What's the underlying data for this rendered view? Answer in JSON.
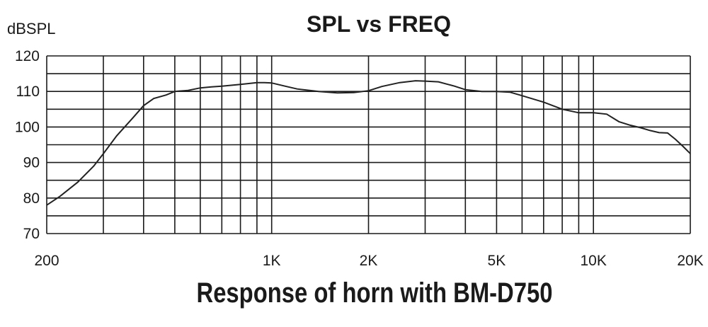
{
  "chart_data": {
    "type": "line",
    "title": "SPL vs FREQ",
    "ylabel": "dBSPL",
    "xlabel": "",
    "caption": "Response of horn with BM-D750",
    "x_scale": "log",
    "xlim": [
      200,
      20000
    ],
    "ylim": [
      70,
      120
    ],
    "grid": true,
    "x_tick_labels": [
      {
        "value": 200,
        "label": "200"
      },
      {
        "value": 1000,
        "label": "1K"
      },
      {
        "value": 2000,
        "label": "2K"
      },
      {
        "value": 5000,
        "label": "5K"
      },
      {
        "value": 10000,
        "label": "10K"
      },
      {
        "value": 20000,
        "label": "20K"
      }
    ],
    "y_tick_labels": [
      {
        "value": 70,
        "label": "70"
      },
      {
        "value": 80,
        "label": "80"
      },
      {
        "value": 90,
        "label": "90"
      },
      {
        "value": 100,
        "label": "100"
      },
      {
        "value": 110,
        "label": "110"
      },
      {
        "value": 120,
        "label": "120"
      }
    ],
    "series": [
      {
        "color": "#222222",
        "x": [
          200,
          220,
          250,
          280,
          300,
          330,
          370,
          400,
          430,
          470,
          500,
          550,
          600,
          650,
          700,
          800,
          900,
          950,
          1000,
          1100,
          1200,
          1400,
          1600,
          1800,
          2000,
          2200,
          2500,
          2800,
          3000,
          3300,
          3700,
          4000,
          4500,
          5000,
          5500,
          6000,
          7000,
          8000,
          9000,
          10000,
          11000,
          12000,
          13000,
          14000,
          15000,
          16000,
          17000,
          18000,
          19000,
          20000
        ],
        "y": [
          78,
          80.5,
          84.5,
          89,
          92.5,
          97.5,
          102.5,
          106,
          108,
          109,
          110,
          110.3,
          111,
          111.3,
          111.5,
          112,
          112.5,
          112.5,
          112.4,
          111.5,
          110.7,
          110,
          109.6,
          109.7,
          110.2,
          111.4,
          112.5,
          113,
          112.9,
          112.7,
          111.5,
          110.5,
          110,
          110,
          109.8,
          108.8,
          107,
          105,
          104,
          104,
          103.6,
          101.5,
          100.5,
          99.8,
          99,
          98.4,
          98.3,
          96.5,
          94.5,
          92.5
        ]
      }
    ]
  }
}
